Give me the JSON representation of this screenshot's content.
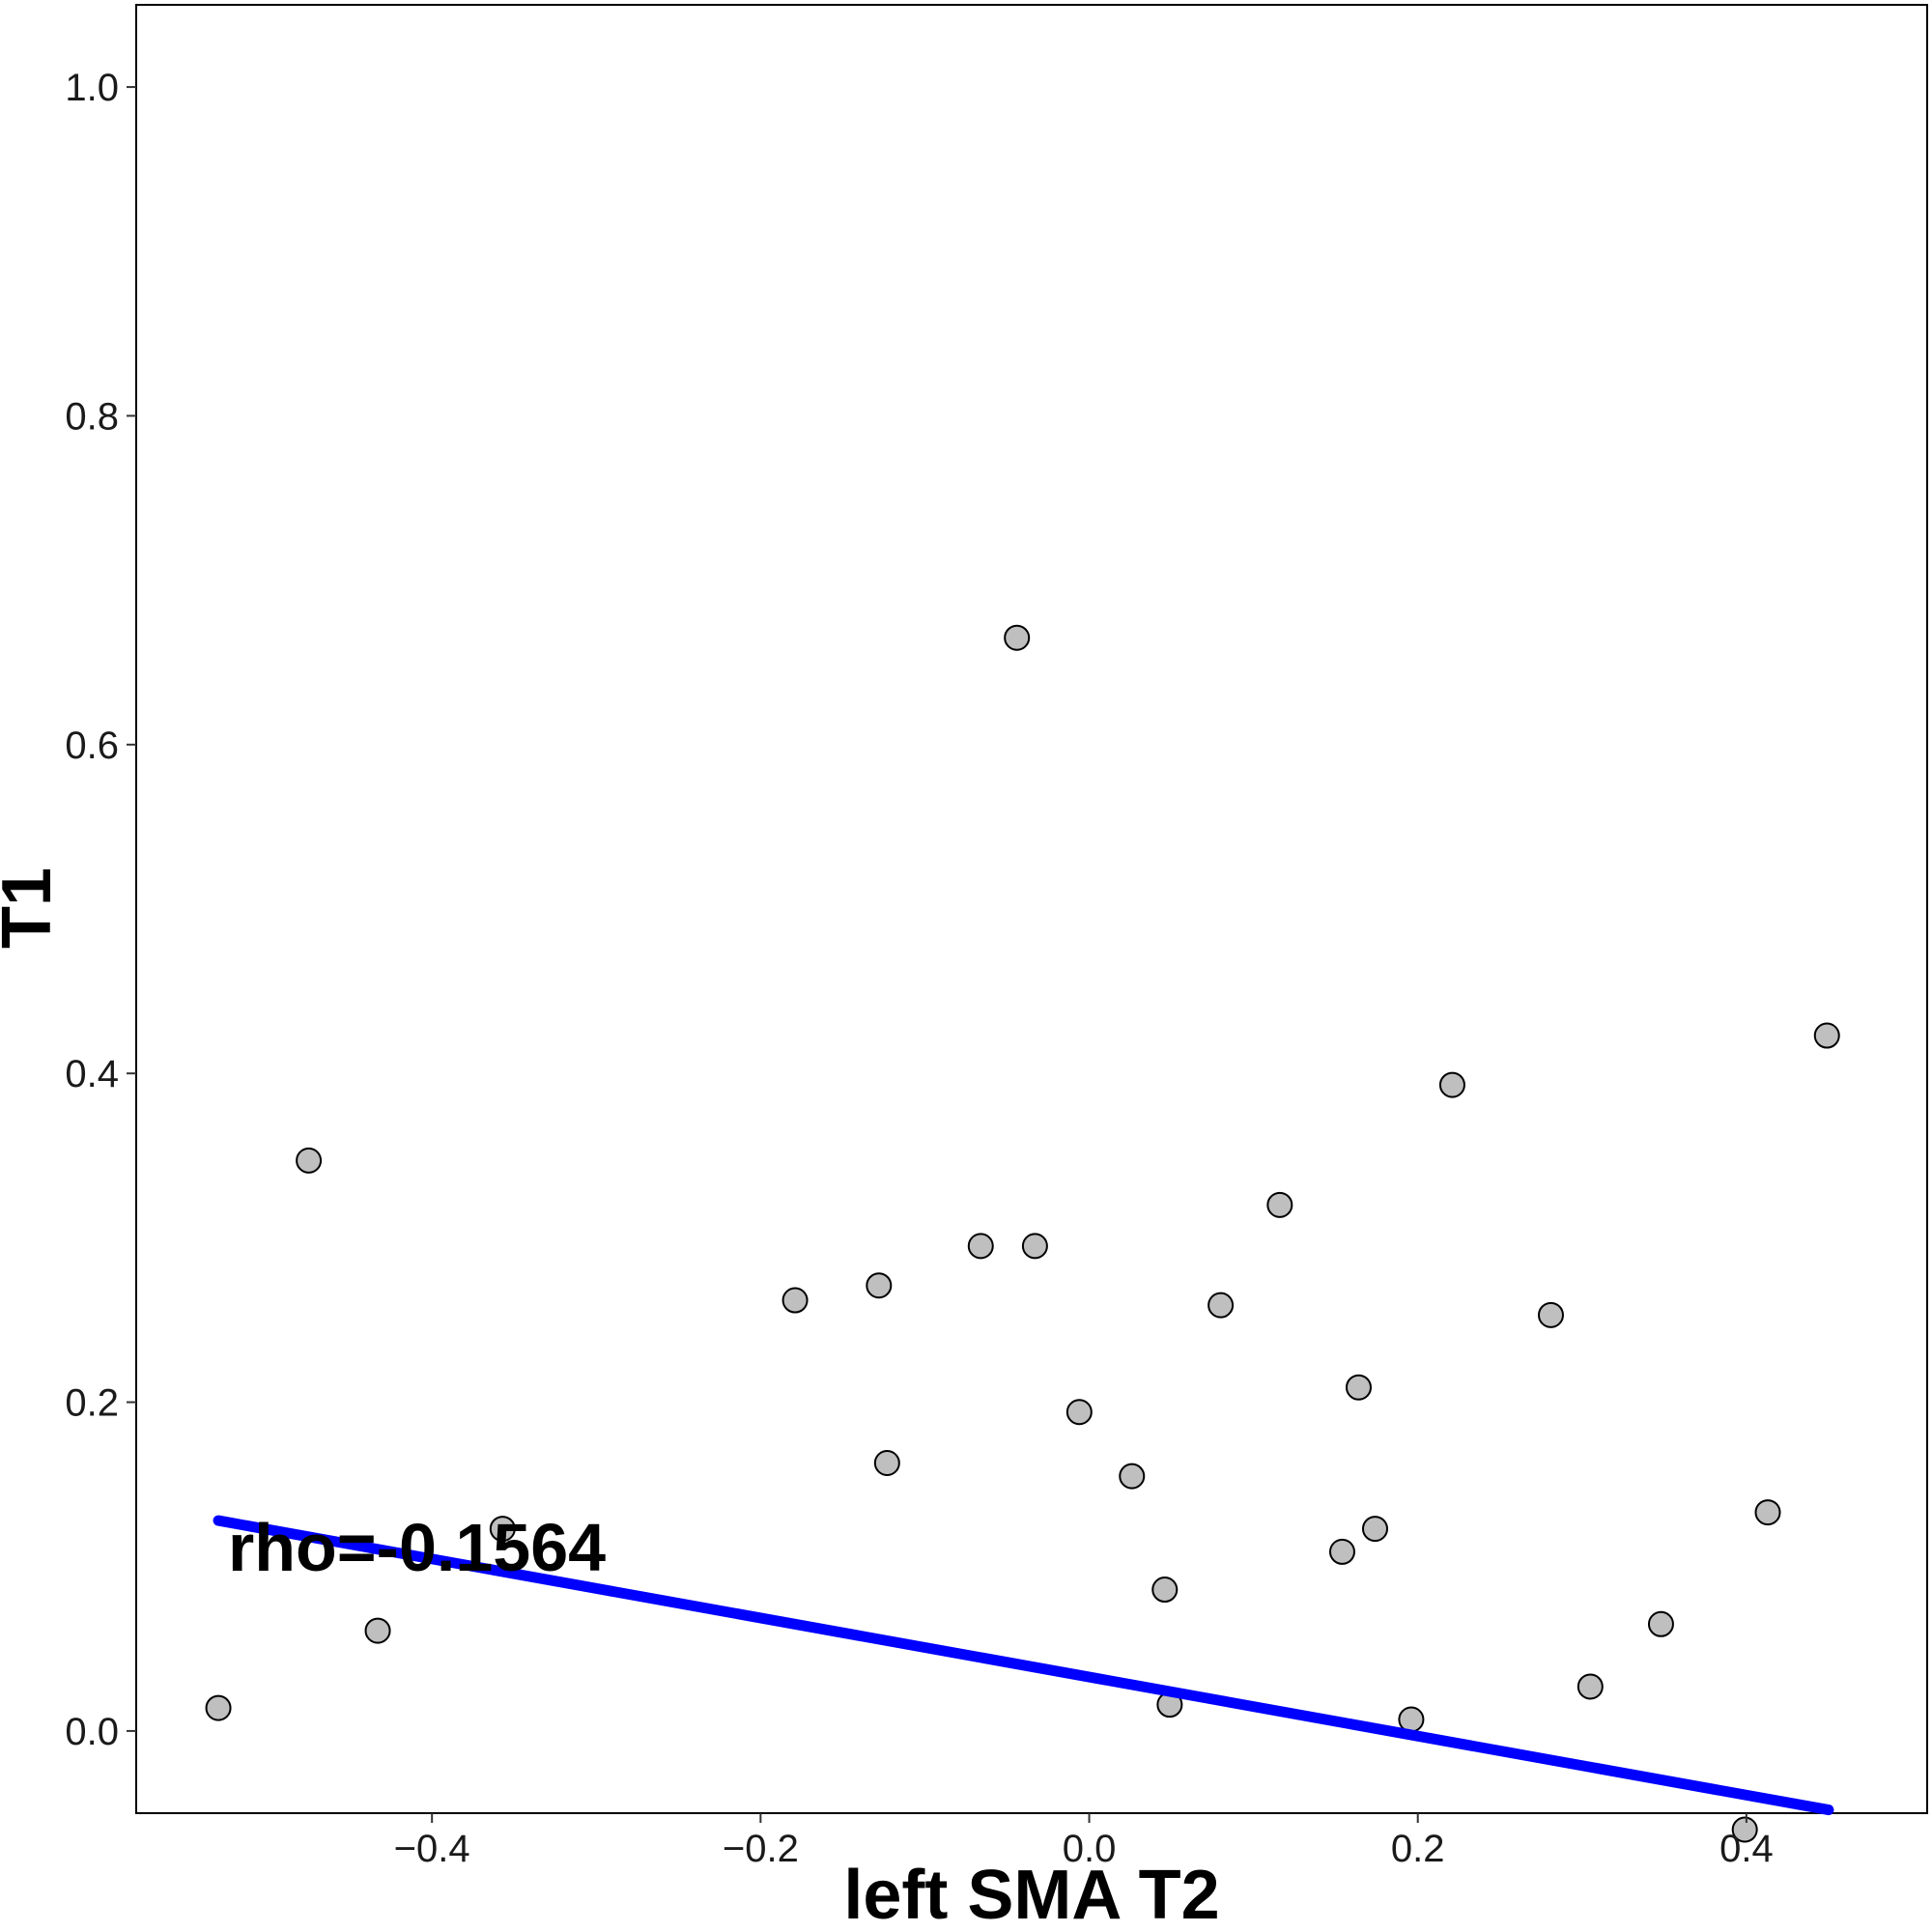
{
  "chart_data": {
    "type": "scatter",
    "xlabel": "left SMA T2",
    "ylabel": "T1",
    "annotation": "rho=-0.1564",
    "xlim": [
      -0.58,
      0.51
    ],
    "ylim": [
      -0.05,
      1.05
    ],
    "xticks": [
      -0.4,
      -0.2,
      0.0,
      0.2,
      0.4
    ],
    "xtick_labels": [
      "−0.4",
      "−0.2",
      "0.0",
      "0.2",
      "0.4"
    ],
    "yticks": [
      0.0,
      0.2,
      0.4,
      0.6,
      0.8,
      1.0
    ],
    "ytick_labels": [
      "0.0",
      "0.2",
      "0.4",
      "0.6",
      "0.8",
      "1.0"
    ],
    "grid": false,
    "x": [
      -0.53,
      -0.475,
      -0.433,
      -0.357,
      -0.179,
      -0.128,
      -0.123,
      -0.066,
      -0.044,
      -0.033,
      -0.006,
      0.026,
      0.046,
      0.049,
      0.08,
      0.116,
      0.154,
      0.164,
      0.174,
      0.196,
      0.221,
      0.281,
      0.305,
      0.348,
      0.399,
      0.413,
      0.449
    ],
    "y": [
      0.014,
      0.347,
      0.061,
      0.123,
      0.262,
      0.271,
      0.163,
      0.295,
      0.665,
      0.295,
      0.194,
      0.155,
      0.086,
      0.016,
      0.259,
      0.32,
      0.109,
      0.209,
      0.123,
      0.007,
      0.393,
      0.253,
      0.027,
      0.065,
      -0.06,
      0.133,
      0.423
    ],
    "regression_line": {
      "x": [
        -0.53,
        0.45
      ],
      "y": [
        0.128,
        -0.048
      ]
    },
    "colors": {
      "point_fill": "#bfbfbf",
      "point_stroke": "#000000",
      "line": "#0000ff",
      "frame": "#000000"
    }
  }
}
